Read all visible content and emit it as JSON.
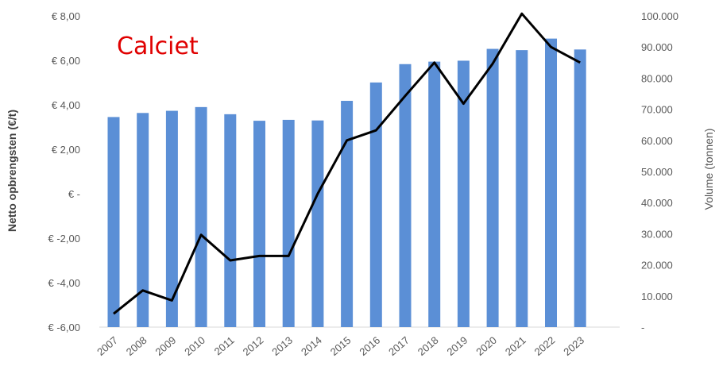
{
  "chart_data": {
    "type": "bar",
    "title": "Calciet",
    "categories": [
      "2007",
      "2008",
      "2009",
      "2010",
      "2011",
      "2012",
      "2013",
      "2014",
      "2015",
      "2016",
      "2017",
      "2018",
      "2019",
      "2020",
      "2021",
      "2022",
      "2023"
    ],
    "ylabel_left": "Netto opbrengsten (€/t)",
    "ylabel_right": "Volume (tonnen)",
    "ylim_left": [
      -6,
      8
    ],
    "ylim_right": [
      0,
      100000
    ],
    "yticks_left": [
      "€ 8,00",
      "€ 6,00",
      "€ 4,00",
      "€ 2,00",
      "€ -",
      "€ -2,00",
      "€ -4,00",
      "€ -6,00"
    ],
    "yticks_right": [
      "100.000",
      "90.000",
      "80.000",
      "70.000",
      "60.000",
      "50.000",
      "40.000",
      "30.000",
      "20.000",
      "10.000",
      "-"
    ],
    "grid": false,
    "series": [
      {
        "type": "bar",
        "axis": "right",
        "color": "#5b8fd6",
        "values": [
          67500,
          68800,
          69500,
          70700,
          68400,
          66300,
          66600,
          66400,
          72700,
          78600,
          84500,
          85300,
          85600,
          89400,
          89000,
          92700,
          89200
        ]
      },
      {
        "type": "line",
        "axis": "left",
        "color": "#000000",
        "values": [
          -5.4,
          -4.35,
          -4.8,
          -1.85,
          -3.0,
          -2.8,
          -2.8,
          0.0,
          2.4,
          2.85,
          4.4,
          5.9,
          4.05,
          5.85,
          8.1,
          6.6,
          5.9
        ]
      }
    ]
  }
}
